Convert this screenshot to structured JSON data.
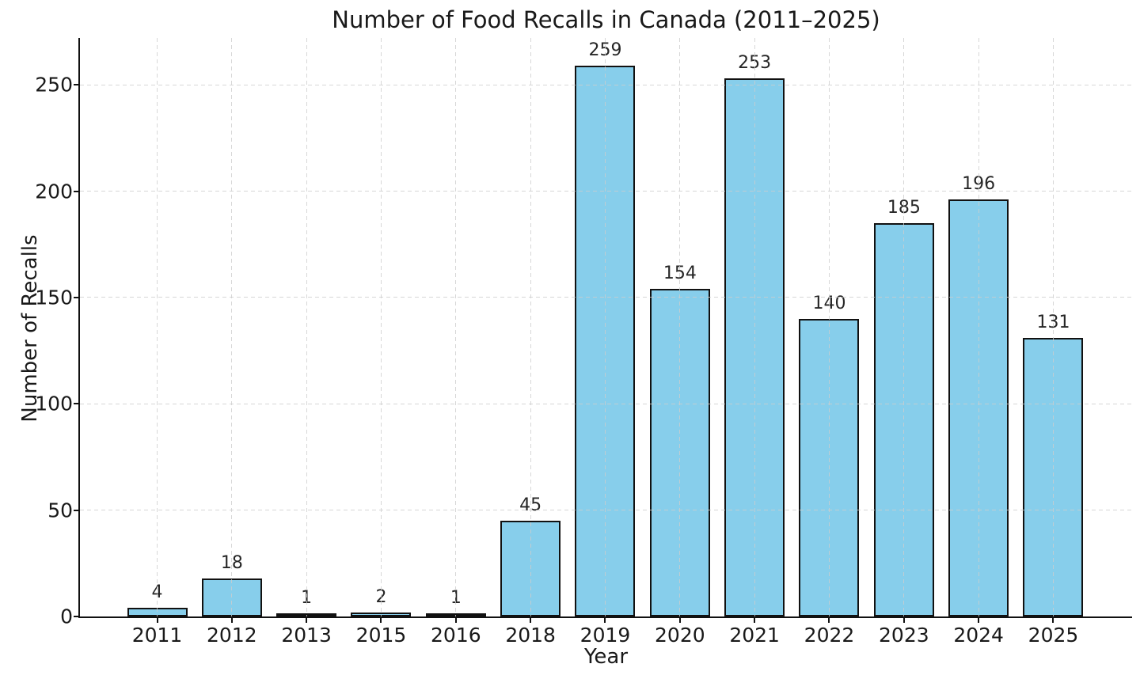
{
  "chart_data": {
    "type": "bar",
    "title": "Number of Food Recalls in Canada (2011–2025)",
    "xlabel": "Year",
    "ylabel": "Number of Recalls",
    "categories": [
      "2011",
      "2012",
      "2013",
      "2015",
      "2016",
      "2018",
      "2019",
      "2020",
      "2021",
      "2022",
      "2023",
      "2024",
      "2025"
    ],
    "values": [
      4,
      18,
      1,
      2,
      1,
      45,
      259,
      154,
      253,
      140,
      185,
      196,
      131
    ],
    "value_labels": [
      "4",
      "18",
      "1",
      "2",
      "1",
      "45",
      "259",
      "154",
      "253",
      "140",
      "185",
      "196",
      "131"
    ],
    "yticks": [
      0,
      50,
      100,
      150,
      200,
      250
    ],
    "ylim": [
      0,
      272
    ],
    "grid": "dashed, horizontal and vertical, drawn over bars",
    "legend": "none",
    "bar_fill_color": "#87CEEB",
    "bar_edge_color": "#111111",
    "grid_color": "#cdcdcd",
    "text_color": "#191919"
  }
}
